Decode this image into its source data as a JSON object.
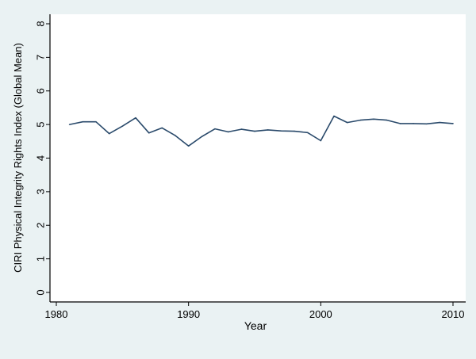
{
  "chart_data": {
    "type": "line",
    "title": "",
    "xlabel": "Year",
    "ylabel": "CIRI Physical Integrity Rights Index (Global Mean)",
    "xlim": [
      1980,
      2010
    ],
    "ylim": [
      0,
      8
    ],
    "x_ticks": [
      1980,
      1990,
      2000,
      2010
    ],
    "y_ticks": [
      0,
      1,
      2,
      3,
      4,
      5,
      6,
      7,
      8
    ],
    "grid": false,
    "series": [
      {
        "x": [
          1981,
          1982,
          1983,
          1984,
          1985,
          1986,
          1987,
          1988,
          1989,
          1990,
          1991,
          1992,
          1993,
          1994,
          1995,
          1996,
          1997,
          1998,
          1999,
          2000,
          2001,
          2002,
          2003,
          2004,
          2005,
          2006,
          2007,
          2008,
          2009,
          2010
        ],
        "y": [
          5.0,
          5.08,
          5.08,
          4.73,
          4.95,
          5.2,
          4.75,
          4.9,
          4.67,
          4.36,
          4.64,
          4.87,
          4.78,
          4.86,
          4.8,
          4.84,
          4.81,
          4.8,
          4.76,
          4.52,
          5.25,
          5.06,
          5.13,
          5.16,
          5.13,
          5.03,
          5.03,
          5.02,
          5.06,
          5.03
        ]
      }
    ],
    "colors": {
      "line": "#2a4a6b",
      "plot_bg": "#ffffff",
      "outer_bg": "#eaf2f3",
      "axis": "#000000"
    }
  }
}
